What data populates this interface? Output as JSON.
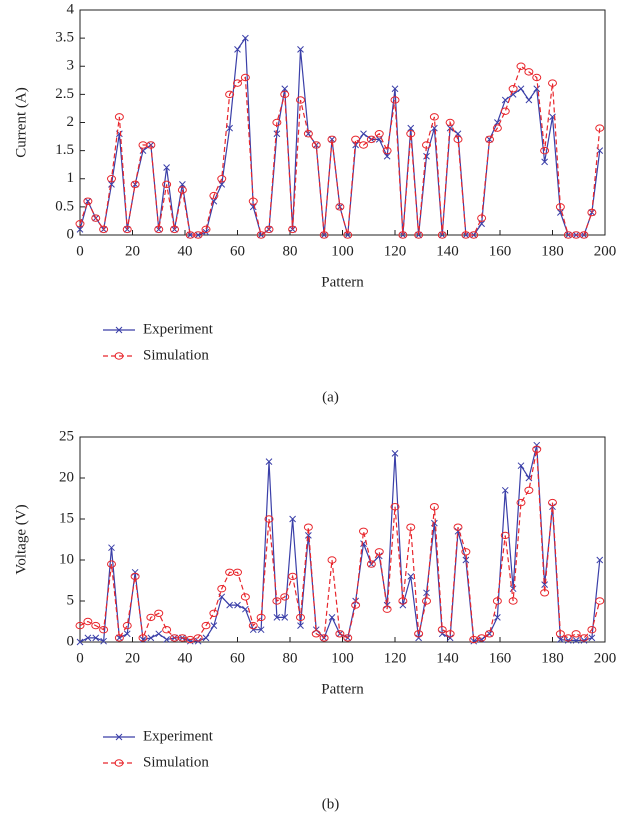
{
  "chart_data": [
    {
      "type": "line",
      "caption": "(a)",
      "x_label": "Pattern",
      "y_label": "Current (A)",
      "x": [
        0,
        3,
        6,
        9,
        12,
        15,
        18,
        21,
        24,
        27,
        30,
        33,
        36,
        39,
        42,
        45,
        48,
        51,
        54,
        57,
        60,
        63,
        66,
        69,
        72,
        75,
        78,
        81,
        84,
        87,
        90,
        93,
        96,
        99,
        102,
        105,
        108,
        111,
        114,
        117,
        120,
        123,
        126,
        129,
        132,
        135,
        138,
        141,
        144,
        147,
        150,
        153,
        156,
        159,
        162,
        165,
        168,
        171,
        174,
        177,
        180,
        183,
        186,
        189,
        192,
        195,
        198
      ],
      "xlim": [
        0,
        200
      ],
      "xticks": [
        0,
        20,
        40,
        60,
        80,
        100,
        120,
        140,
        160,
        180,
        200
      ],
      "ylim": [
        0,
        4
      ],
      "yticks": [
        0,
        0.5,
        1,
        1.5,
        2,
        2.5,
        3,
        3.5,
        4
      ],
      "series": [
        {
          "name": "Experiment",
          "color": "#3a3fa8",
          "linestyle": "solid",
          "marker": "x",
          "values": [
            0.1,
            0.6,
            0.3,
            0.1,
            0.9,
            1.8,
            0.1,
            0.9,
            1.5,
            1.6,
            0.1,
            1.2,
            0.1,
            0.9,
            0.0,
            0.0,
            0.05,
            0.6,
            0.9,
            1.9,
            3.3,
            3.5,
            0.5,
            0.0,
            0.1,
            1.8,
            2.6,
            0.1,
            3.3,
            1.8,
            1.6,
            0.0,
            1.7,
            0.5,
            0.0,
            1.6,
            1.8,
            1.7,
            1.7,
            1.4,
            2.6,
            0.0,
            1.9,
            0.0,
            1.4,
            1.9,
            0.0,
            1.9,
            1.8,
            0.0,
            0.0,
            0.2,
            1.7,
            2.0,
            2.4,
            2.5,
            2.6,
            2.4,
            2.6,
            1.3,
            2.1,
            0.4,
            0.0,
            0.0,
            0.0,
            0.4,
            1.5
          ]
        },
        {
          "name": "Simulation",
          "color": "#e8262c",
          "linestyle": "dashed",
          "marker": "circle",
          "values": [
            0.2,
            0.6,
            0.3,
            0.1,
            1.0,
            2.1,
            0.1,
            0.9,
            1.6,
            1.6,
            0.1,
            0.9,
            0.1,
            0.8,
            0.0,
            0.0,
            0.1,
            0.7,
            1.0,
            2.5,
            2.7,
            2.8,
            0.6,
            0.0,
            0.1,
            2.0,
            2.5,
            0.1,
            2.4,
            1.8,
            1.6,
            0.0,
            1.7,
            0.5,
            0.0,
            1.7,
            1.6,
            1.7,
            1.8,
            1.5,
            2.4,
            0.0,
            1.8,
            0.0,
            1.6,
            2.1,
            0.0,
            2.0,
            1.7,
            0.0,
            0.0,
            0.3,
            1.7,
            1.9,
            2.2,
            2.6,
            3.0,
            2.9,
            2.8,
            1.5,
            2.7,
            0.5,
            0.0,
            0.0,
            0.0,
            0.4,
            1.9
          ]
        }
      ]
    },
    {
      "type": "line",
      "caption": "(b)",
      "x_label": "Pattern",
      "y_label": "Voltage (V)",
      "x": [
        0,
        3,
        6,
        9,
        12,
        15,
        18,
        21,
        24,
        27,
        30,
        33,
        36,
        39,
        42,
        45,
        48,
        51,
        54,
        57,
        60,
        63,
        66,
        69,
        72,
        75,
        78,
        81,
        84,
        87,
        90,
        93,
        96,
        99,
        102,
        105,
        108,
        111,
        114,
        117,
        120,
        123,
        126,
        129,
        132,
        135,
        138,
        141,
        144,
        147,
        150,
        153,
        156,
        159,
        162,
        165,
        168,
        171,
        174,
        177,
        180,
        183,
        186,
        189,
        192,
        195,
        198
      ],
      "xlim": [
        0,
        200
      ],
      "xticks": [
        0,
        20,
        40,
        60,
        80,
        100,
        120,
        140,
        160,
        180,
        200
      ],
      "ylim": [
        0,
        25
      ],
      "yticks": [
        0,
        5,
        10,
        15,
        20,
        25
      ],
      "series": [
        {
          "name": "Experiment",
          "color": "#3a3fa8",
          "linestyle": "solid",
          "marker": "x",
          "values": [
            0,
            0.5,
            0.5,
            0.1,
            11.5,
            0.5,
            1,
            8.5,
            0.3,
            0.5,
            1,
            0.3,
            0.5,
            0.5,
            0.1,
            0.1,
            0.5,
            2,
            5.5,
            4.5,
            4.5,
            4,
            1.5,
            1.5,
            22,
            3,
            3,
            15,
            2,
            13,
            1.5,
            0.5,
            3,
            1,
            0.5,
            5,
            12,
            9.5,
            10.5,
            4.5,
            23,
            4.5,
            8,
            0.5,
            6,
            14.5,
            1,
            0.5,
            13.5,
            10,
            0.1,
            0.3,
            1,
            3,
            18.5,
            6.5,
            21.5,
            20,
            24,
            7,
            16.5,
            0.3,
            0.2,
            0.2,
            0.2,
            0.5,
            10
          ]
        },
        {
          "name": "Simulation",
          "color": "#e8262c",
          "linestyle": "dashed",
          "marker": "circle",
          "values": [
            2,
            2.5,
            2,
            1.5,
            9.5,
            0.5,
            2,
            8,
            0.5,
            3,
            3.5,
            1.5,
            0.5,
            0.5,
            0.3,
            0.5,
            2,
            3.5,
            6.5,
            8.5,
            8.5,
            5.5,
            2,
            3,
            15,
            5,
            5.5,
            8,
            3,
            14,
            1,
            0.5,
            10,
            1,
            0.5,
            4.5,
            13.5,
            9.5,
            11,
            4,
            16.5,
            5,
            14,
            1,
            5,
            16.5,
            1.5,
            1,
            14,
            11,
            0.3,
            0.5,
            1,
            5,
            13,
            5,
            17,
            18.5,
            23.5,
            6,
            17,
            1,
            0.5,
            1,
            0.5,
            1.5,
            5
          ]
        }
      ]
    }
  ]
}
